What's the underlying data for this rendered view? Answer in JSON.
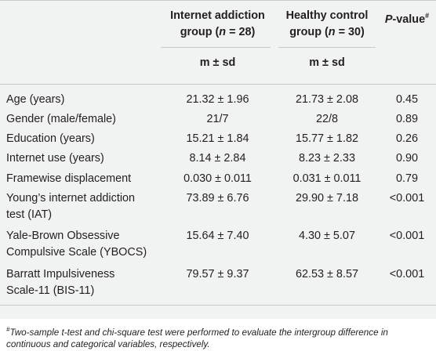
{
  "table": {
    "headers": {
      "group1": "Internet addiction group (n = 28)",
      "group2": "Healthy control group (n = 30)",
      "pvalue": "P-value#",
      "stat1": "m ± sd",
      "stat2": "m ± sd"
    },
    "rows": [
      {
        "label": "Age (years)",
        "g1": "21.32 ± 1.96",
        "g2": "21.73 ± 2.08",
        "p": "0.45"
      },
      {
        "label": "Gender (male/female)",
        "g1": "21/7",
        "g2": "22/8",
        "p": "0.89"
      },
      {
        "label": "Education (years)",
        "g1": "15.21 ± 1.84",
        "g2": "15.77 ± 1.82",
        "p": "0.26"
      },
      {
        "label": "Internet use (years)",
        "g1": "8.14 ± 2.84",
        "g2": "8.23 ± 2.33",
        "p": "0.90"
      },
      {
        "label": "Framewise displacement",
        "g1": "0.030 ± 0.011",
        "g2": "0.031 ± 0.011",
        "p": "0.79"
      },
      {
        "label": "Young's internet addiction test (IAT)",
        "g1": "73.89 ± 6.76",
        "g2": "29.90 ± 7.18",
        "p": "<0.001"
      },
      {
        "label": "Yale-Brown Obsessive Compulsive Scale (YBOCS)",
        "g1": "15.64 ± 7.40",
        "g2": "4.30 ± 5.07",
        "p": "<0.001"
      },
      {
        "label": "Barratt Impulsiveness Scale-11 (BIS-11)",
        "g1": "79.57 ± 9.37",
        "g2": "62.53 ± 8.57",
        "p": "<0.001"
      }
    ],
    "footnote": "#Two-sample t-test and chi-square test were performed to evaluate the intergroup difference in continuous and categorical variables, respectively."
  }
}
